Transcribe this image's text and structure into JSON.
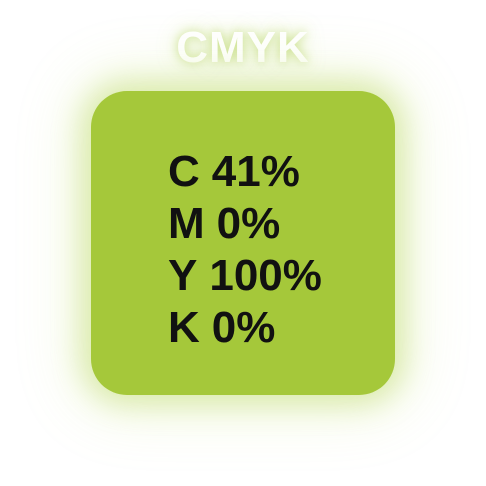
{
  "title": "CMYK",
  "swatch_color": "#a5c83a",
  "cmyk": [
    {
      "channel": "C",
      "value": "41%"
    },
    {
      "channel": "M",
      "value": "0%"
    },
    {
      "channel": "Y",
      "value": "100%"
    },
    {
      "channel": "K",
      "value": "0%"
    }
  ]
}
